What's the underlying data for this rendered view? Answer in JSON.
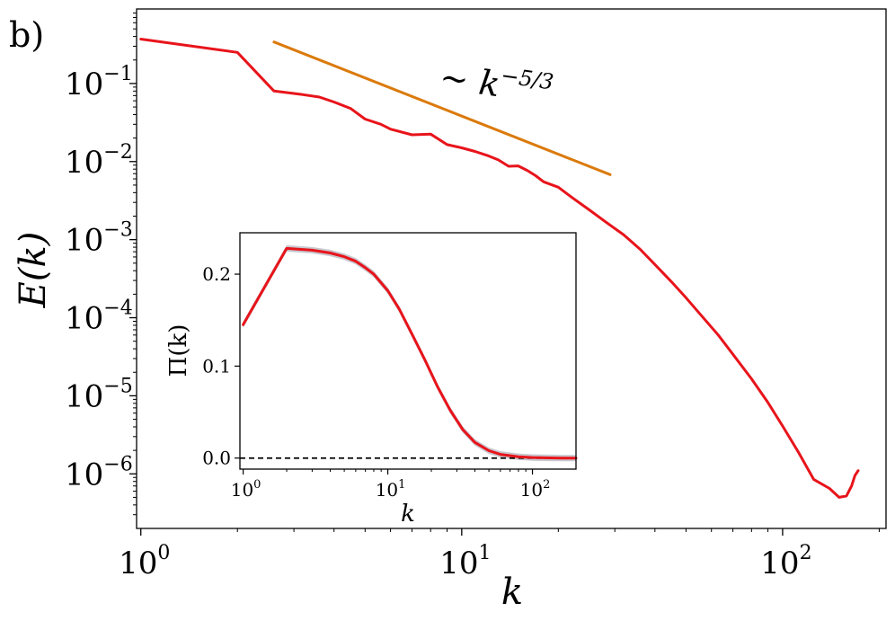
{
  "panel_label": "b)",
  "chart_data": [
    {
      "type": "line",
      "xlabel": "k",
      "ylabel": "E(k)",
      "xscale": "log",
      "yscale": "log",
      "xlim": [
        0.97,
        210
      ],
      "ylim": [
        2e-07,
        0.9
      ],
      "x_ticks": [
        {
          "base": "10",
          "exp": "0",
          "value": 1
        },
        {
          "base": "10",
          "exp": "1",
          "value": 10
        },
        {
          "base": "10",
          "exp": "2",
          "value": 100
        }
      ],
      "y_ticks": [
        {
          "base": "10",
          "exp": "−1",
          "value": 0.1
        },
        {
          "base": "10",
          "exp": "−2",
          "value": 0.01
        },
        {
          "base": "10",
          "exp": "−3",
          "value": 0.001
        },
        {
          "base": "10",
          "exp": "−4",
          "value": 0.0001
        },
        {
          "base": "10",
          "exp": "−5",
          "value": 1e-05
        },
        {
          "base": "10",
          "exp": "−6",
          "value": 1e-06
        }
      ],
      "grid": false,
      "series": [
        {
          "color": "#e8141b",
          "x": [
            1,
            2,
            2.6,
            3.2,
            3.6,
            4,
            4.5,
            5,
            5.6,
            6,
            7,
            8,
            9,
            10,
            11,
            12,
            13,
            14,
            15,
            16,
            17,
            18,
            20,
            22,
            25,
            28,
            32,
            36,
            40,
            45,
            50,
            56,
            63,
            70,
            80,
            90,
            100,
            112,
            125,
            140,
            150,
            158,
            164,
            168,
            172
          ],
          "y": [
            0.37,
            0.25,
            0.08,
            0.072,
            0.067,
            0.058,
            0.048,
            0.035,
            0.03,
            0.026,
            0.022,
            0.0225,
            0.0165,
            0.015,
            0.0135,
            0.012,
            0.0105,
            0.0087,
            0.0088,
            0.0077,
            0.0066,
            0.0055,
            0.0047,
            0.0035,
            0.0024,
            0.0017,
            0.00115,
            0.00075,
            0.00048,
            0.00029,
            0.00018,
            0.000105,
            6e-05,
            3.4e-05,
            1.65e-05,
            8.2e-06,
            4.1e-06,
            1.9e-06,
            8.5e-07,
            6.5e-07,
            5e-07,
            5.2e-07,
            7e-07,
            9.5e-07,
            1.1e-06
          ]
        },
        {
          "color": "#db7a0c",
          "x": [
            2.6,
            29
          ],
          "y": [
            0.34,
            0.0068
          ]
        }
      ],
      "annotations": [
        {
          "text": "∼ k",
          "superscript": "−5/3"
        }
      ]
    },
    {
      "type": "line",
      "xlabel": "k",
      "ylabel": "Π(k)",
      "xscale": "log",
      "yscale": "linear",
      "xlim": [
        0.95,
        200
      ],
      "ylim": [
        -0.012,
        0.245
      ],
      "x_ticks": [
        {
          "base": "10",
          "exp": "0",
          "value": 1
        },
        {
          "base": "10",
          "exp": "1",
          "value": 10
        },
        {
          "base": "10",
          "exp": "2",
          "value": 100
        }
      ],
      "y_ticks": [
        {
          "label": "0.0",
          "value": 0.0
        },
        {
          "label": "0.1",
          "value": 0.1
        },
        {
          "label": "0.2",
          "value": 0.2
        }
      ],
      "grid": false,
      "series": [
        {
          "color": "#e8141b",
          "band_color": "#9a9aa8",
          "band_halfwidth": 0.0035,
          "x": [
            1,
            2,
            3,
            4,
            5,
            6,
            7,
            8,
            10,
            12,
            15,
            18,
            22,
            27,
            33,
            40,
            50,
            60,
            80,
            100,
            130,
            160,
            200
          ],
          "y": [
            0.145,
            0.228,
            0.226,
            0.223,
            0.219,
            0.214,
            0.207,
            0.2,
            0.182,
            0.162,
            0.132,
            0.107,
            0.078,
            0.052,
            0.031,
            0.017,
            0.008,
            0.004,
            0.0015,
            0.0006,
            0.0002,
            0.0,
            0.0
          ]
        }
      ],
      "reference_line": {
        "y": 0.0,
        "style": "dashed",
        "color": "#000000"
      }
    }
  ]
}
